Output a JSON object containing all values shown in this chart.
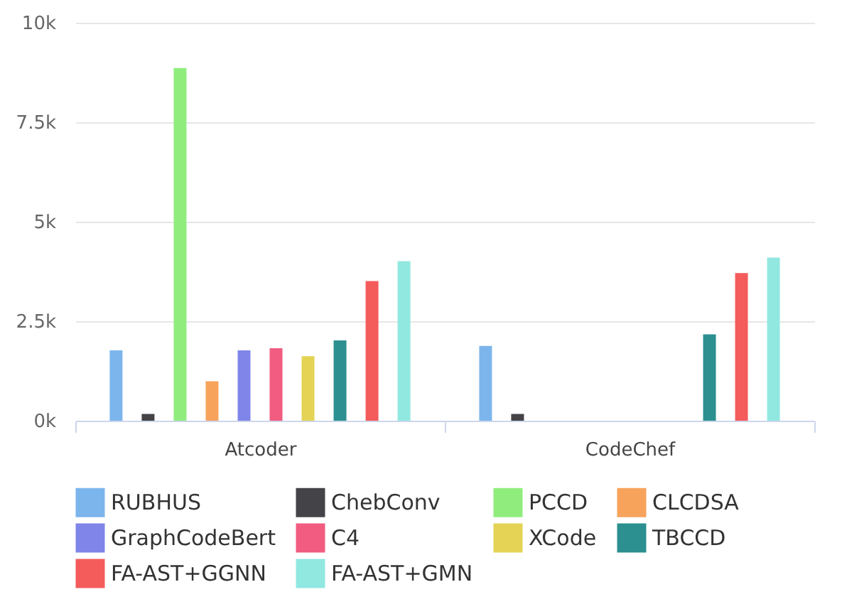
{
  "chart_data": {
    "type": "bar",
    "categories": [
      "Atcoder",
      "CodeChef"
    ],
    "series": [
      {
        "name": "RUBHUS",
        "color": "#7cb5ec",
        "values": [
          1.77,
          1.88
        ]
      },
      {
        "name": "ChebConv",
        "color": "#434348",
        "values": [
          0.17,
          0.17
        ]
      },
      {
        "name": "PCCD",
        "color": "#90ed7d",
        "values": [
          8.86,
          null
        ]
      },
      {
        "name": "CLCDSA",
        "color": "#f7a35c",
        "values": [
          0.99,
          null
        ]
      },
      {
        "name": "GraphCodeBert",
        "color": "#8085e9",
        "values": [
          1.77,
          null
        ]
      },
      {
        "name": "C4",
        "color": "#f15c80",
        "values": [
          1.82,
          null
        ]
      },
      {
        "name": "XCode",
        "color": "#e4d354",
        "values": [
          1.62,
          null
        ]
      },
      {
        "name": "TBCCD",
        "color": "#2b908f",
        "values": [
          2.02,
          2.17
        ]
      },
      {
        "name": "FA-AST+GGNN",
        "color": "#f45b5b",
        "values": [
          3.51,
          3.71
        ]
      },
      {
        "name": "FA-AST+GMN",
        "color": "#91e8e1",
        "values": [
          4.01,
          4.1
        ]
      }
    ],
    "ylim": [
      0,
      10
    ],
    "yticks": [
      {
        "value": 0,
        "label": "0k"
      },
      {
        "value": 2.5,
        "label": "2.5k"
      },
      {
        "value": 5,
        "label": "5k"
      },
      {
        "value": 7.5,
        "label": "7.5k"
      },
      {
        "value": 10,
        "label": "10k"
      }
    ],
    "grid": "y",
    "legend": "bottom"
  }
}
